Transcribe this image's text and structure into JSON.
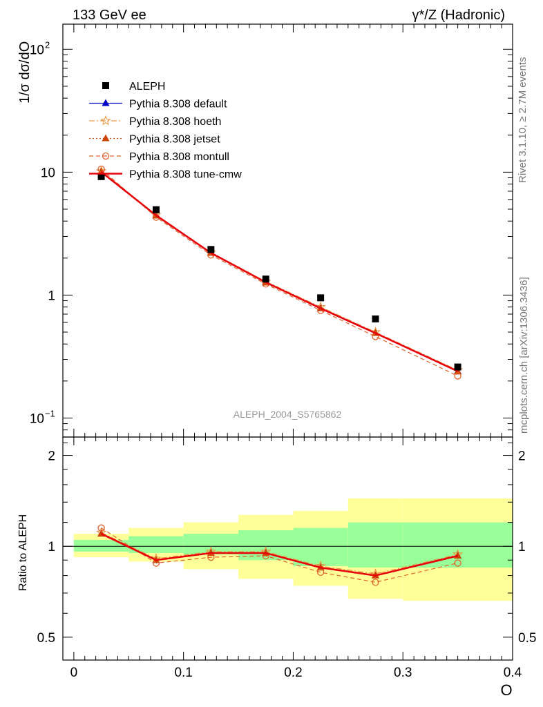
{
  "header": {
    "energy_label": "133 GeV ee",
    "process_label": "γ*/Z (Hadronic)"
  },
  "side": {
    "rivet_label": "Rivet 3.1.10, ≥ 2.7M events",
    "mcplots_label": "mcplots.cern.ch [arXiv:1306.3436]"
  },
  "watermark": "ALEPH_2004_S5765862",
  "main_ylabel": "1/σ  dσ/dO",
  "ratio_ylabel": "Ratio to ALEPH",
  "xlabel": "O",
  "main_yticks": [
    {
      "v": 0.1,
      "base": "10",
      "exp": "−1"
    },
    {
      "v": 1,
      "base": "1",
      "exp": ""
    },
    {
      "v": 10,
      "base": "10",
      "exp": ""
    },
    {
      "v": 100,
      "base": "10",
      "exp": "2"
    }
  ],
  "ratio_yticks": [
    {
      "v": 0.5,
      "label": "0.5"
    },
    {
      "v": 1,
      "label": "1"
    },
    {
      "v": 2,
      "label": "2"
    }
  ],
  "xticks": [
    {
      "v": 0,
      "label": "0"
    },
    {
      "v": 0.1,
      "label": "0.1"
    },
    {
      "v": 0.2,
      "label": "0.2"
    },
    {
      "v": 0.3,
      "label": "0.3"
    },
    {
      "v": 0.4,
      "label": "0.4"
    }
  ],
  "chart_data": {
    "type": "line",
    "title": "133 GeV ee  γ*/Z (Hadronic)",
    "xlabel": "O",
    "ylabel": "1/σ dσ/dO",
    "xlim": [
      -0.01,
      0.4
    ],
    "ylim": [
      0.07,
      160
    ],
    "yscale": "log",
    "ratio_ylim": [
      0.42,
      2.3
    ],
    "ratio_ylabel": "Ratio to ALEPH",
    "bins": [
      [
        0.0,
        0.05
      ],
      [
        0.05,
        0.1
      ],
      [
        0.1,
        0.15
      ],
      [
        0.15,
        0.2
      ],
      [
        0.2,
        0.25
      ],
      [
        0.25,
        0.3
      ],
      [
        0.3,
        0.4
      ]
    ],
    "x": [
      0.025,
      0.075,
      0.125,
      0.175,
      0.225,
      0.275,
      0.35
    ],
    "data": {
      "name": "ALEPH",
      "values": [
        9.2,
        4.95,
        2.35,
        1.35,
        0.95,
        0.64,
        0.26
      ],
      "band_inner": [
        [
          0.96,
          1.05
        ],
        [
          0.95,
          1.08
        ],
        [
          0.94,
          1.1
        ],
        [
          0.9,
          1.13
        ],
        [
          0.86,
          1.15
        ],
        [
          0.85,
          1.2
        ],
        [
          0.85,
          1.2
        ]
      ],
      "band_outer": [
        [
          0.92,
          1.1
        ],
        [
          0.89,
          1.15
        ],
        [
          0.84,
          1.2
        ],
        [
          0.78,
          1.27
        ],
        [
          0.74,
          1.31
        ],
        [
          0.67,
          1.44
        ],
        [
          0.66,
          1.44
        ]
      ]
    },
    "series": [
      {
        "name": "Pythia 8.308 default",
        "color": "#0000cc",
        "style": "solid",
        "marker": "triangle",
        "values": [
          10.1,
          4.45,
          2.2,
          1.27,
          0.78,
          0.49,
          0.24
        ],
        "ratio": [
          1.1,
          0.9,
          0.95,
          0.95,
          0.85,
          0.8,
          0.93
        ]
      },
      {
        "name": "Pythia 8.308 hoeth",
        "color": "#e69540",
        "style": "dashdot",
        "marker": "star",
        "values": [
          10.2,
          4.5,
          2.23,
          1.29,
          0.8,
          0.5,
          0.245
        ],
        "ratio": [
          1.11,
          0.91,
          0.96,
          0.96,
          0.86,
          0.81,
          0.94
        ]
      },
      {
        "name": "Pythia 8.308 jetset",
        "color": "#cc4400",
        "style": "dotted",
        "marker": "triangle",
        "values": [
          10.1,
          4.42,
          2.2,
          1.26,
          0.78,
          0.49,
          0.238
        ],
        "ratio": [
          1.1,
          0.9,
          0.95,
          0.95,
          0.85,
          0.8,
          0.93
        ]
      },
      {
        "name": "Pythia 8.308 montull",
        "color": "#e0602a",
        "style": "dashed",
        "marker": "circle",
        "values": [
          10.6,
          4.3,
          2.12,
          1.23,
          0.75,
          0.46,
          0.22
        ],
        "ratio": [
          1.15,
          0.88,
          0.92,
          0.93,
          0.82,
          0.76,
          0.88
        ]
      },
      {
        "name": "Pythia 8.308 tune-cmw",
        "color": "#e8000b",
        "style": "solid-thick",
        "marker": "none",
        "values": [
          10.05,
          4.45,
          2.2,
          1.27,
          0.78,
          0.49,
          0.24
        ],
        "ratio": [
          1.1,
          0.9,
          0.95,
          0.95,
          0.85,
          0.8,
          0.93
        ]
      }
    ]
  }
}
